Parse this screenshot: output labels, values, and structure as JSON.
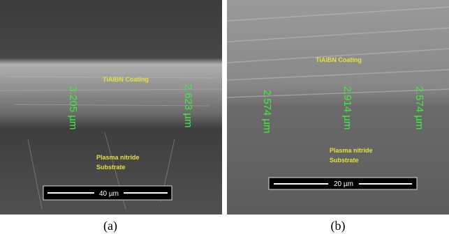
{
  "panels": [
    {
      "label": "(a)",
      "coating_label": "TiAlBN Coating",
      "measurements": [
        "3.205 µm",
        "2.623 µm"
      ],
      "substrate_label": [
        "Plasma nitride",
        "Substrate"
      ],
      "scale_bar": "40 µm"
    },
    {
      "label": "(b)",
      "coating_label": "TiAlBN Coating",
      "measurements": [
        "2.574 µm",
        "2.914 µm",
        "2.574 µm"
      ],
      "substrate_label": [
        "Plasma nitride",
        "Substrate"
      ],
      "scale_bar": "20 µm"
    }
  ]
}
